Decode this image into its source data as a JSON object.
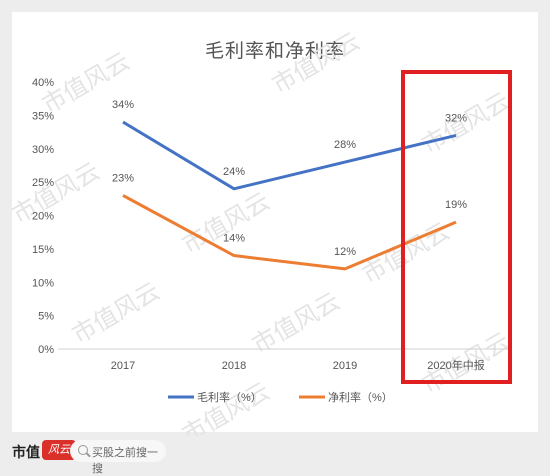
{
  "chart_data": {
    "type": "line",
    "title": "毛利率和净利率",
    "categories": [
      "2017",
      "2018",
      "2019",
      "2020年中报"
    ],
    "series": [
      {
        "name": "毛利率（%）",
        "color": "#4472c4",
        "values": [
          34,
          24,
          28,
          32
        ],
        "labels": [
          "34%",
          "24%",
          "28%",
          "32%"
        ]
      },
      {
        "name": "净利率（%）",
        "color": "#ed7d31",
        "values": [
          23,
          14,
          12,
          19
        ],
        "labels": [
          "23%",
          "14%",
          "12%",
          "19%"
        ]
      }
    ],
    "ylim": [
      0,
      40
    ],
    "yticks": [
      "0%",
      "5%",
      "10%",
      "15%",
      "20%",
      "25%",
      "30%",
      "35%",
      "40%"
    ],
    "grid": false,
    "legend_position": "bottom",
    "highlight_color": "#e02020"
  },
  "watermark": "市值风云",
  "footer": {
    "brand": "市值",
    "brand_mark": "风云",
    "search_text": "买股之前搜一搜"
  }
}
